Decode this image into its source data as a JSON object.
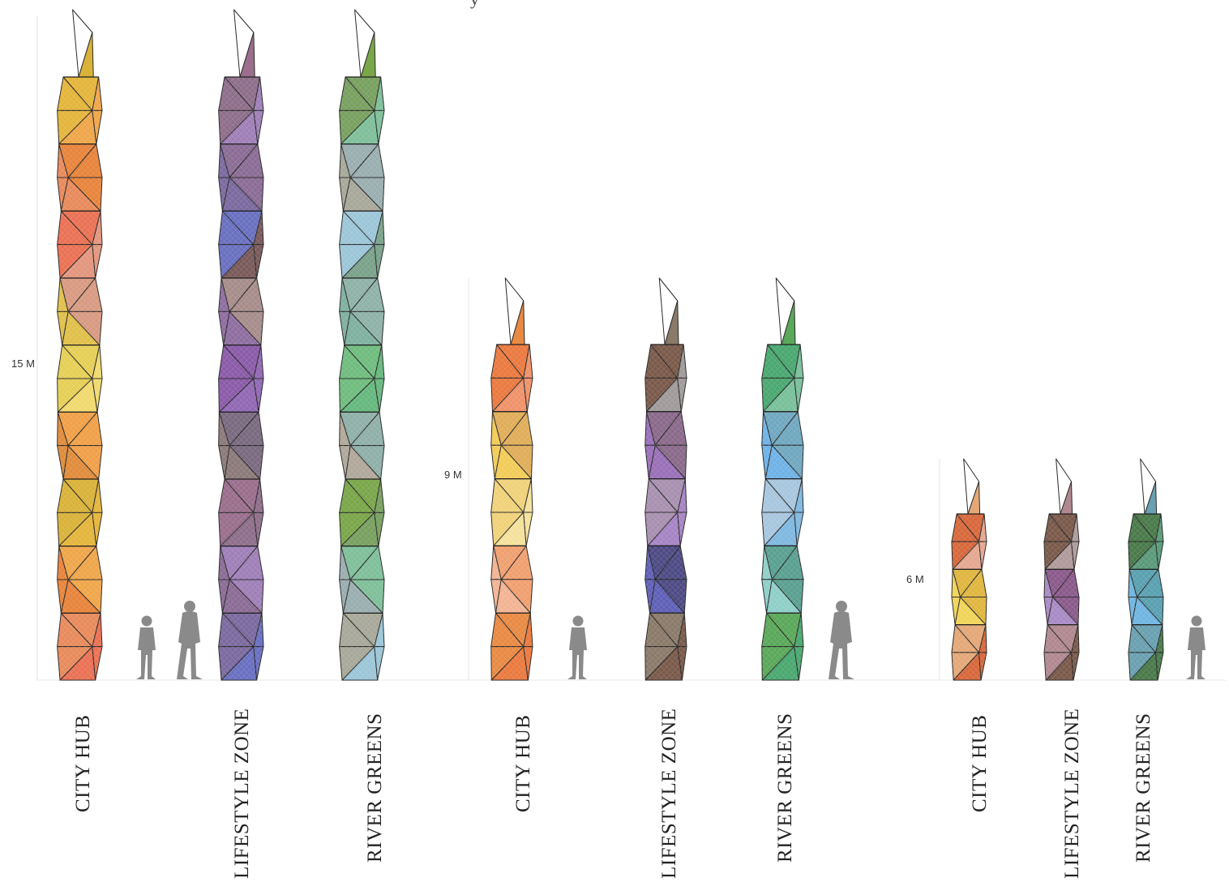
{
  "top_text": "y",
  "groups": [
    {
      "height_label": "15 M",
      "towers": [
        {
          "label": "CITY HUB",
          "palette": [
            "#d9b23a",
            "#e4b53c",
            "#efa64a",
            "#e8843c",
            "#e88a5c",
            "#ea7154",
            "#e2967e",
            "#d89a82",
            "#e0c04a",
            "#e6cf56",
            "#f0d96e",
            "#f0a048",
            "#e08c3c"
          ]
        },
        {
          "label": "LIFESTYLE ZONE",
          "palette": [
            "#9a6e8c",
            "#8e6e8a",
            "#9f7fb7",
            "#8a6c95",
            "#7a6a9f",
            "#6a70c0",
            "#7a5a5a",
            "#a68d8a",
            "#8e6ea0",
            "#8a5ba8",
            "#9168b4",
            "#7a6a80",
            "#8c7a7a"
          ]
        },
        {
          "label": "RIVER GREENS",
          "palette": [
            "#7aa64a",
            "#78a060",
            "#7fbf9a",
            "#9aaeb0",
            "#a8a89a",
            "#9cc6d8",
            "#7aa28a",
            "#8fb2a8",
            "#7fb0a0",
            "#6fbc7e",
            "#66b87e",
            "#8fb0a8",
            "#b0a89a"
          ]
        }
      ]
    },
    {
      "height_label": "9 M",
      "towers": [
        {
          "label": "CITY HUB",
          "palette": [
            "#e88a44",
            "#ea7a40",
            "#f0926a",
            "#e0ae5a",
            "#f2cc58",
            "#f0d27a",
            "#f4e29c",
            "#f0a070",
            "#f2b494"
          ]
        },
        {
          "label": "LIFESTYLE ZONE",
          "palette": [
            "#8a7a6a",
            "#7a5a4a",
            "#a09a9a",
            "#8a6a8a",
            "#9a70b8",
            "#a890b0",
            "#a684c4",
            "#4e4a84",
            "#6060b8"
          ]
        },
        {
          "label": "RIVER GREENS",
          "palette": [
            "#5aa85a",
            "#4aa870",
            "#7ac09a",
            "#70a8c0",
            "#6fb2e6",
            "#a8c6de",
            "#80b8e0",
            "#5aa090",
            "#8ecfc8"
          ]
        }
      ]
    },
    {
      "height_label": "6 M",
      "towers": [
        {
          "label": "CITY HUB",
          "palette": [
            "#e4a878",
            "#d8683c",
            "#e4a890",
            "#e0b640",
            "#f0d45a"
          ]
        },
        {
          "label": "LIFESTYLE ZONE",
          "palette": [
            "#b08890",
            "#7a5a4a",
            "#b09a9a",
            "#8a5a8a",
            "#a88ac4"
          ]
        },
        {
          "label": "RIVER GREENS",
          "palette": [
            "#6aa0b0",
            "#4a7a4a",
            "#5a9a7a",
            "#5aa0b0",
            "#70b6e0"
          ]
        }
      ]
    }
  ]
}
